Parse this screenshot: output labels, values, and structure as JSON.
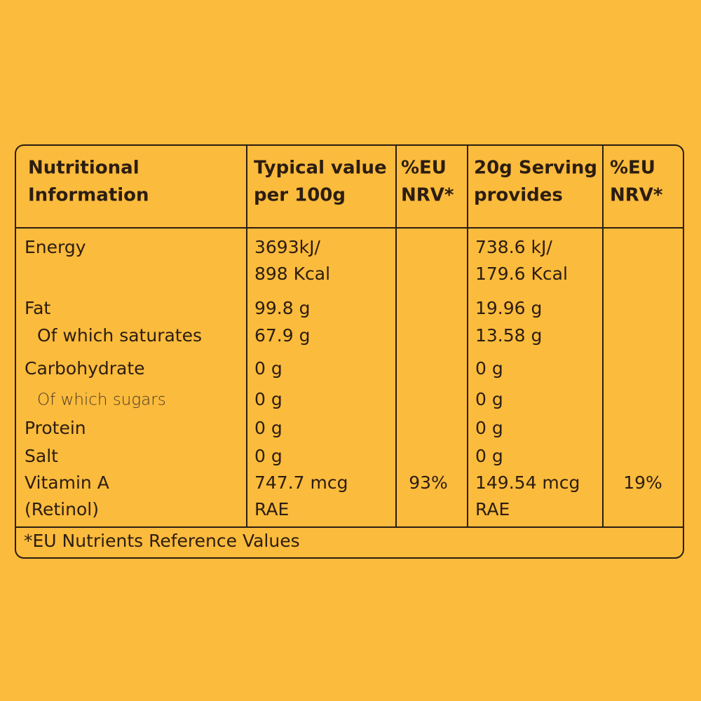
{
  "table": {
    "header": [
      [
        "Nutritional",
        "Information"
      ],
      [
        "Typical value",
        "per 100g"
      ],
      [
        "%EU",
        "NRV*"
      ],
      [
        "20g Serving",
        "provides"
      ],
      [
        "%EU",
        "NRV*"
      ]
    ],
    "rows": [
      [
        [
          "Energy"
        ],
        [
          "3693kJ/",
          "898 Kcal"
        ],
        [],
        [
          "738.6 kJ/",
          "179.6 Kcal"
        ],
        []
      ],
      [
        [
          "Fat"
        ],
        [
          "99.8 g"
        ],
        [],
        [
          "19.96 g"
        ],
        []
      ],
      [
        [
          "Of which saturates"
        ],
        [
          "67.9 g"
        ],
        [],
        [
          "13.58 g"
        ],
        []
      ],
      [
        [
          "Carbohydrate"
        ],
        [
          "0 g"
        ],
        [],
        [
          "0 g"
        ],
        []
      ],
      [
        [
          "Of which sugars"
        ],
        [
          "0 g"
        ],
        [],
        [
          "0 g"
        ],
        []
      ],
      [
        [
          "Protein"
        ],
        [
          "0 g"
        ],
        [],
        [
          "0 g"
        ],
        []
      ],
      [
        [
          "Salt"
        ],
        [
          "0 g"
        ],
        [],
        [
          "0 g"
        ],
        []
      ],
      [
        [
          "Vitamin A",
          "(Retinol)"
        ],
        [
          "747.7 mcg",
          "RAE"
        ],
        [
          "93%"
        ],
        [
          "149.54 mcg",
          "RAE"
        ],
        [
          "19%"
        ]
      ]
    ],
    "footnote": "*EU Nutrients Reference Values"
  }
}
